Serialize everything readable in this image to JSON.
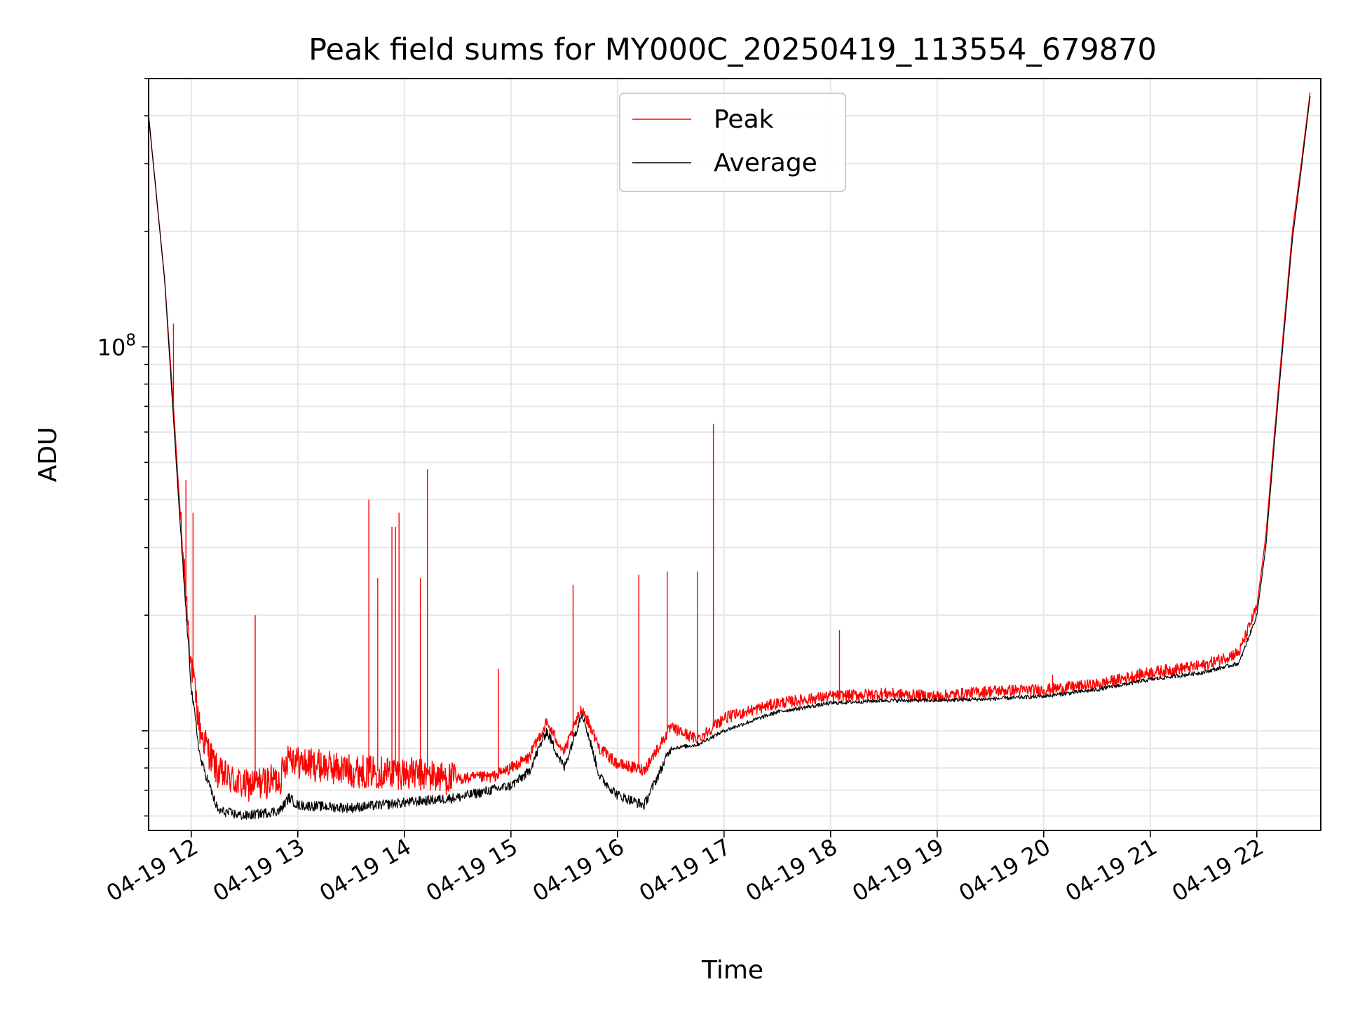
{
  "chart_data": {
    "type": "line",
    "title": "Peak field sums for MY000C_20250419_113554_679870",
    "xlabel": "Time",
    "ylabel": "ADU",
    "y_scale": "log",
    "y_tick_labels": [
      {
        "value": 100000000,
        "base": "10",
        "exp": "8"
      }
    ],
    "ylim": [
      5500000,
      500000000
    ],
    "x_tick_labels": [
      "04-19 12",
      "04-19 13",
      "04-19 14",
      "04-19 15",
      "04-19 16",
      "04-19 17",
      "04-19 18",
      "04-19 19",
      "04-19 20",
      "04-19 21",
      "04-19 22"
    ],
    "x_tick_hours": [
      12,
      13,
      14,
      15,
      16,
      17,
      18,
      19,
      20,
      21,
      22
    ],
    "xlim": [
      "2025-04-19 11:36",
      "2025-04-19 22:36"
    ],
    "grid": true,
    "legend_position": "top-center",
    "colors": {
      "peak": "#ff0000",
      "average": "#000000",
      "grid": "#e6e6e6"
    },
    "series": [
      {
        "name": "Peak",
        "color": "#ff0000",
        "points": [
          [
            "11:36",
            400000000
          ],
          [
            "11:45",
            150000000
          ],
          [
            "11:50",
            70000000
          ],
          [
            "11:55",
            30000000
          ],
          [
            "12:00",
            15000000
          ],
          [
            "12:05",
            10000000
          ],
          [
            "12:15",
            7800000
          ],
          [
            "12:30",
            7200000
          ],
          [
            "12:50",
            7500000
          ],
          [
            "12:55",
            8800000
          ],
          [
            "13:00",
            8300000
          ],
          [
            "13:30",
            7900000
          ],
          [
            "14:00",
            7800000
          ],
          [
            "14:30",
            7500000
          ],
          [
            "14:50",
            7600000
          ],
          [
            "15:00",
            8000000
          ],
          [
            "15:10",
            8500000
          ],
          [
            "15:20",
            10500000
          ],
          [
            "15:30",
            8800000
          ],
          [
            "15:40",
            11500000
          ],
          [
            "15:50",
            9000000
          ],
          [
            "16:00",
            8200000
          ],
          [
            "16:15",
            7900000
          ],
          [
            "16:30",
            10200000
          ],
          [
            "16:45",
            9500000
          ],
          [
            "17:00",
            10800000
          ],
          [
            "17:30",
            11800000
          ],
          [
            "18:00",
            12300000
          ],
          [
            "18:30",
            12500000
          ],
          [
            "19:00",
            12300000
          ],
          [
            "19:30",
            12700000
          ],
          [
            "20:00",
            12800000
          ],
          [
            "20:30",
            13200000
          ],
          [
            "21:00",
            14200000
          ],
          [
            "21:30",
            14800000
          ],
          [
            "21:50",
            16000000
          ],
          [
            "22:00",
            21000000
          ],
          [
            "22:05",
            32000000
          ],
          [
            "22:10",
            60000000
          ],
          [
            "22:15",
            110000000
          ],
          [
            "22:20",
            200000000
          ],
          [
            "22:25",
            300000000
          ],
          [
            "22:30",
            460000000
          ]
        ]
      },
      {
        "name": "Average",
        "color": "#000000",
        "points": [
          [
            "11:36",
            400000000
          ],
          [
            "11:45",
            150000000
          ],
          [
            "11:50",
            65000000
          ],
          [
            "11:55",
            28000000
          ],
          [
            "12:00",
            13000000
          ],
          [
            "12:05",
            8500000
          ],
          [
            "12:15",
            6200000
          ],
          [
            "12:30",
            6000000
          ],
          [
            "12:50",
            6200000
          ],
          [
            "12:55",
            6700000
          ],
          [
            "13:00",
            6400000
          ],
          [
            "13:30",
            6300000
          ],
          [
            "14:00",
            6500000
          ],
          [
            "14:30",
            6700000
          ],
          [
            "15:00",
            7200000
          ],
          [
            "15:10",
            7800000
          ],
          [
            "15:20",
            10000000
          ],
          [
            "15:30",
            8000000
          ],
          [
            "15:40",
            11200000
          ],
          [
            "15:50",
            7600000
          ],
          [
            "16:00",
            6800000
          ],
          [
            "16:15",
            6400000
          ],
          [
            "16:30",
            9000000
          ],
          [
            "16:45",
            9200000
          ],
          [
            "17:00",
            10000000
          ],
          [
            "17:30",
            11200000
          ],
          [
            "18:00",
            11800000
          ],
          [
            "18:30",
            12000000
          ],
          [
            "19:00",
            12000000
          ],
          [
            "19:30",
            12100000
          ],
          [
            "20:00",
            12300000
          ],
          [
            "20:30",
            12800000
          ],
          [
            "21:00",
            13600000
          ],
          [
            "21:30",
            14200000
          ],
          [
            "21:50",
            15000000
          ],
          [
            "22:00",
            20000000
          ],
          [
            "22:05",
            30000000
          ],
          [
            "22:10",
            57000000
          ],
          [
            "22:15",
            105000000
          ],
          [
            "22:20",
            190000000
          ],
          [
            "22:25",
            290000000
          ],
          [
            "22:30",
            450000000
          ]
        ]
      }
    ],
    "peak_spikes": [
      [
        "11:50",
        115000000
      ],
      [
        "11:57",
        45000000
      ],
      [
        "12:01",
        37000000
      ],
      [
        "12:36",
        20000000
      ],
      [
        "13:40",
        40000000
      ],
      [
        "13:45",
        25000000
      ],
      [
        "13:53",
        34000000
      ],
      [
        "13:55",
        34000000
      ],
      [
        "13:57",
        37000000
      ],
      [
        "14:09",
        25000000
      ],
      [
        "14:13",
        48000000
      ],
      [
        "14:53",
        14500000
      ],
      [
        "15:35",
        24000000
      ],
      [
        "16:12",
        25500000
      ],
      [
        "16:28",
        26000000
      ],
      [
        "16:45",
        26000000
      ],
      [
        "16:54",
        63000000
      ],
      [
        "18:05",
        18300000
      ],
      [
        "20:05",
        14000000
      ]
    ]
  }
}
